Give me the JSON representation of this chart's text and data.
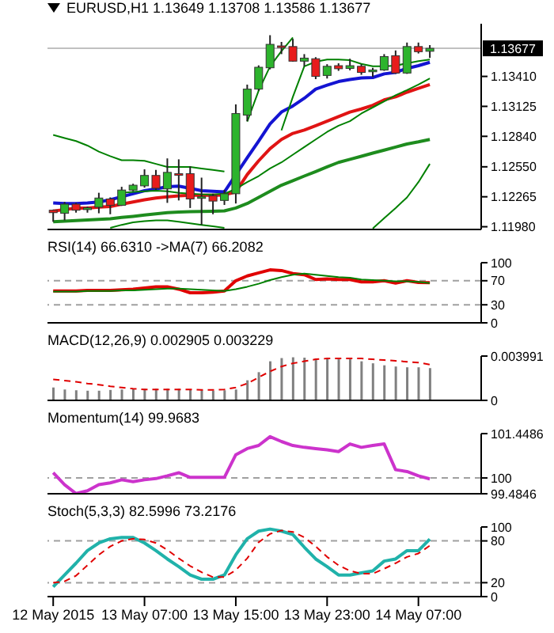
{
  "chart_data": [
    {
      "type": "candlestick",
      "title": "EURUSD,H1 1.13649 1.13708 1.13586 1.13677",
      "x": [
        "2015-05-12T23:00",
        "2015-05-13T00:00",
        "2015-05-13T01:00",
        "2015-05-13T02:00",
        "2015-05-13T03:00",
        "2015-05-13T04:00",
        "2015-05-13T05:00",
        "2015-05-13T06:00",
        "2015-05-13T07:00",
        "2015-05-13T08:00",
        "2015-05-13T09:00",
        "2015-05-13T10:00",
        "2015-05-13T11:00",
        "2015-05-13T12:00",
        "2015-05-13T13:00",
        "2015-05-13T14:00",
        "2015-05-13T15:00",
        "2015-05-13T16:00",
        "2015-05-13T17:00",
        "2015-05-13T18:00",
        "2015-05-13T19:00",
        "2015-05-13T20:00",
        "2015-05-13T21:00",
        "2015-05-13T22:00",
        "2015-05-13T23:00",
        "2015-05-14T00:00",
        "2015-05-14T01:00",
        "2015-05-14T02:00",
        "2015-05-14T03:00",
        "2015-05-14T04:00",
        "2015-05-14T05:00",
        "2015-05-14T06:00",
        "2015-05-14T07:00",
        "2015-05-14T08:00"
      ],
      "ohlc": [
        [
          1.12137,
          1.12143,
          1.12027,
          1.12114
        ],
        [
          1.12108,
          1.12216,
          1.12041,
          1.12195
        ],
        [
          1.12195,
          1.12207,
          1.12114,
          1.12137
        ],
        [
          1.12143,
          1.12172,
          1.12114,
          1.1216
        ],
        [
          1.12166,
          1.12303,
          1.12108,
          1.12253
        ],
        [
          1.12244,
          1.12259,
          1.12099,
          1.12184
        ],
        [
          1.12184,
          1.1236,
          1.12178,
          1.12329
        ],
        [
          1.12329,
          1.12389,
          1.12317,
          1.12375
        ],
        [
          1.12369,
          1.12526,
          1.12352,
          1.12468
        ],
        [
          1.12468,
          1.1252,
          1.12331,
          1.12346
        ],
        [
          1.1234,
          1.1263,
          1.12207,
          1.12497
        ],
        [
          1.12485,
          1.12621,
          1.1223,
          1.12476
        ],
        [
          1.12485,
          1.12555,
          1.12158,
          1.12244
        ],
        [
          1.12259,
          1.12447,
          1.11998,
          1.12265
        ],
        [
          1.12274,
          1.12294,
          1.12099,
          1.12224
        ],
        [
          1.1223,
          1.12331,
          1.12187,
          1.12294
        ],
        [
          1.12294,
          1.13144,
          1.12201,
          1.13057
        ],
        [
          1.13042,
          1.13332,
          1.12984,
          1.13289
        ],
        [
          1.13289,
          1.13515,
          1.13274,
          1.13497
        ],
        [
          1.13492,
          1.13802,
          1.13477,
          1.13715
        ],
        [
          1.137,
          1.13738,
          1.13622,
          1.13694
        ],
        [
          1.13694,
          1.13767,
          1.1355,
          1.13555
        ],
        [
          1.13555,
          1.13622,
          1.13506,
          1.13584
        ],
        [
          1.13578,
          1.13593,
          1.13384,
          1.1341
        ],
        [
          1.13419,
          1.13526,
          1.1339,
          1.13506
        ],
        [
          1.13512,
          1.13535,
          1.13463,
          1.13483
        ],
        [
          1.13486,
          1.13578,
          1.13468,
          1.13512
        ],
        [
          1.13506,
          1.13526,
          1.13425,
          1.13448
        ],
        [
          1.13454,
          1.13492,
          1.13404,
          1.13471
        ],
        [
          1.13471,
          1.13622,
          1.13463,
          1.13599
        ],
        [
          1.13607,
          1.13657,
          1.13434,
          1.13442
        ],
        [
          1.13442,
          1.13732,
          1.13434,
          1.13694
        ],
        [
          1.13694,
          1.13732,
          1.13628,
          1.13645
        ],
        [
          1.13649,
          1.13708,
          1.13586,
          1.13677
        ]
      ],
      "series": [
        {
          "type": "line",
          "color": "#1414d2",
          "values": [
            1.12207,
            1.12201,
            1.12201,
            1.12207,
            1.12216,
            1.12236,
            1.12265,
            1.12294,
            1.12323,
            1.1234,
            1.1236,
            1.12366,
            1.12346,
            1.12323,
            1.12317,
            1.12311,
            1.12474,
            1.12636,
            1.12795,
            1.12958,
            1.13071,
            1.13129,
            1.13202,
            1.13289,
            1.13326,
            1.13361,
            1.13381,
            1.13396,
            1.13399,
            1.13434,
            1.13448,
            1.13486,
            1.13512,
            1.13544
          ]
        },
        {
          "type": "line",
          "color": "#e01414",
          "values": [
            1.12129,
            1.12143,
            1.12158,
            1.12158,
            1.12166,
            1.12172,
            1.12195,
            1.12216,
            1.12236,
            1.12253,
            1.12265,
            1.12274,
            1.12279,
            1.12279,
            1.12279,
            1.12282,
            1.12311,
            1.12476,
            1.12607,
            1.12723,
            1.1281,
            1.12868,
            1.129,
            1.12941,
            1.12984,
            1.13028,
            1.13071,
            1.131,
            1.13135,
            1.13187,
            1.13216,
            1.1326,
            1.13297,
            1.13332
          ]
        },
        {
          "type": "line",
          "color": "#1e8c1e",
          "values": [
            1.12027,
            1.12033,
            1.12039,
            1.12044,
            1.1205,
            1.12056,
            1.12068,
            1.12079,
            1.12091,
            1.12102,
            1.12114,
            1.1212,
            1.12123,
            1.12126,
            1.12128,
            1.12131,
            1.12158,
            1.12201,
            1.12259,
            1.12317,
            1.12375,
            1.12418,
            1.12462,
            1.12505,
            1.12549,
            1.12592,
            1.12621,
            1.1265,
            1.1268,
            1.12709,
            1.12738,
            1.12767,
            1.12787,
            1.1281
          ]
        },
        {
          "type": "line",
          "color": "#008000",
          "values": [
            1.12853,
            1.12824,
            1.12795,
            1.12752,
            1.12694,
            1.12651,
            1.12613,
            1.12613,
            1.12607,
            1.12578,
            1.12549,
            1.12549,
            1.12549,
            1.12534,
            1.1252,
            1.12505,
            null,
            1.1298,
            1.13274,
            1.13506,
            1.13651,
            1.13781,
            null,
            null,
            null,
            null,
            null,
            null,
            null,
            null,
            null,
            null,
            null,
            null
          ]
        },
        {
          "type": "line",
          "color": "#008000",
          "values": [
            null,
            null,
            null,
            null,
            null,
            null,
            null,
            null,
            null,
            null,
            null,
            null,
            null,
            null,
            null,
            null,
            null,
            null,
            null,
            null,
            1.12897,
            1.13216,
            1.13506,
            1.1355,
            1.1357,
            1.1357,
            1.13564,
            1.13529,
            1.13506,
            1.13506,
            1.13512,
            1.13535,
            1.13555,
            1.1357
          ]
        },
        {
          "type": "line",
          "color": "#008000",
          "values": [
            null,
            null,
            null,
            null,
            null,
            null,
            1.12303,
            1.12311,
            1.12317,
            1.12323,
            1.12317,
            1.12303,
            1.12294,
            1.12288,
            1.12288,
            1.12294,
            1.1234,
            1.12404,
            1.12462,
            1.12534,
            1.12592,
            1.12665,
            1.12738,
            1.1281,
            1.12882,
            1.12941,
            1.12984,
            1.13057,
            1.13115,
            1.13173,
            1.13231,
            1.1328,
            1.13332,
            1.1339
          ]
        },
        {
          "type": "line",
          "color": "#008000",
          "values": [
            null,
            null,
            null,
            null,
            null,
            1.11969,
            1.11998,
            1.12021,
            1.12033,
            1.12041,
            1.12041,
            1.12027,
            1.12012,
            1.11998,
            1.11984,
            1.11969,
            null,
            null,
            null,
            null,
            null,
            null,
            null,
            null,
            null,
            null,
            null,
            null,
            1.11963,
            1.12062,
            1.12158,
            1.12259,
            1.12404,
            1.12578
          ]
        }
      ],
      "xlim": [
        "2015-05-12T22:30",
        "2015-05-14T12:30"
      ],
      "ylim": [
        1.11954,
        1.13911
      ],
      "yticks": [
        {
          "value": 1.1198,
          "label": "1.11980"
        },
        1.12265,
        {
          "value": 1.1255,
          "label": "1.12550"
        },
        {
          "value": 1.1284,
          "label": "1.12840"
        },
        1.13125,
        {
          "value": 1.1341,
          "label": "1.13410"
        }
      ],
      "ref_lines": [
        {
          "axis": "y",
          "value": 1.13677,
          "label": "1.13677",
          "color": "#c0c0c0"
        }
      ],
      "tick_labels": "y"
    },
    {
      "type": "line",
      "title": "RSI(14) 66.6310 ->MA(7) 66.2082",
      "x": [
        "2015-05-12T23:00",
        "2015-05-13T00:00",
        "2015-05-13T01:00",
        "2015-05-13T02:00",
        "2015-05-13T03:00",
        "2015-05-13T04:00",
        "2015-05-13T05:00",
        "2015-05-13T06:00",
        "2015-05-13T07:00",
        "2015-05-13T08:00",
        "2015-05-13T09:00",
        "2015-05-13T10:00",
        "2015-05-13T11:00",
        "2015-05-13T12:00",
        "2015-05-13T13:00",
        "2015-05-13T14:00",
        "2015-05-13T15:00",
        "2015-05-13T16:00",
        "2015-05-13T17:00",
        "2015-05-13T18:00",
        "2015-05-13T19:00",
        "2015-05-13T20:00",
        "2015-05-13T21:00",
        "2015-05-13T22:00",
        "2015-05-13T23:00",
        "2015-05-14T00:00",
        "2015-05-14T01:00",
        "2015-05-14T02:00",
        "2015-05-14T03:00",
        "2015-05-14T04:00",
        "2015-05-14T05:00",
        "2015-05-14T06:00",
        "2015-05-14T07:00",
        "2015-05-14T08:00"
      ],
      "series": [
        {
          "color": "#e00000",
          "values": [
            53,
            53,
            53,
            54,
            54,
            54,
            55,
            56,
            58,
            60,
            60,
            56,
            50,
            50,
            51,
            53,
            70,
            78,
            83,
            88,
            87,
            82,
            80,
            72,
            73,
            72,
            72,
            68,
            68,
            70,
            66,
            70,
            67,
            66.631
          ]
        },
        {
          "color": "#008000",
          "values": [
            52,
            52,
            52,
            53,
            53,
            53,
            54,
            54,
            55,
            56,
            57,
            57,
            56,
            55,
            54,
            53,
            56,
            60,
            65,
            71,
            76,
            80,
            82,
            80,
            78,
            76,
            75,
            72,
            71,
            70,
            69,
            69,
            68,
            66.2082
          ]
        }
      ],
      "xlim": [
        "2015-05-12T22:30",
        "2015-05-14T12:30"
      ],
      "ylim": [
        0,
        100
      ],
      "yticks": [
        0,
        30,
        70,
        100
      ],
      "ref_lines": [
        {
          "axis": "y",
          "value": 70,
          "color": "#a0a0a0",
          "line_style": "dashed"
        },
        {
          "axis": "y",
          "value": 30,
          "color": "#a0a0a0",
          "line_style": "dashed"
        }
      ],
      "tick_labels": "y"
    },
    {
      "type": "bar",
      "title": "MACD(12,26,9) 0.002905 0.003229",
      "x": [
        "2015-05-12T23:00",
        "2015-05-13T00:00",
        "2015-05-13T01:00",
        "2015-05-13T02:00",
        "2015-05-13T03:00",
        "2015-05-13T04:00",
        "2015-05-13T05:00",
        "2015-05-13T06:00",
        "2015-05-13T07:00",
        "2015-05-13T08:00",
        "2015-05-13T09:00",
        "2015-05-13T10:00",
        "2015-05-13T11:00",
        "2015-05-13T12:00",
        "2015-05-13T13:00",
        "2015-05-13T14:00",
        "2015-05-13T15:00",
        "2015-05-13T16:00",
        "2015-05-13T17:00",
        "2015-05-13T18:00",
        "2015-05-13T19:00",
        "2015-05-13T20:00",
        "2015-05-13T21:00",
        "2015-05-13T22:00",
        "2015-05-13T23:00",
        "2015-05-14T00:00",
        "2015-05-14T01:00",
        "2015-05-14T02:00",
        "2015-05-14T03:00",
        "2015-05-14T04:00",
        "2015-05-14T05:00",
        "2015-05-14T06:00",
        "2015-05-14T07:00",
        "2015-05-14T08:00"
      ],
      "series": [
        {
          "type": "bar",
          "color": "#808080",
          "values": [
            0.00116,
            0.00098,
            0.00091,
            0.00087,
            0.00087,
            0.00094,
            0.00098,
            0.00105,
            0.00105,
            0.00105,
            0.00105,
            0.00105,
            0.00098,
            0.00091,
            0.00087,
            0.00091,
            0.00098,
            0.00181,
            0.00254,
            0.00352,
            0.00381,
            0.00388,
            0.00385,
            0.00377,
            0.00377,
            0.0037,
            0.0037,
            0.00352,
            0.00334,
            0.00316,
            0.00305,
            0.00298,
            0.00298,
            0.002905
          ]
        },
        {
          "type": "line",
          "color": "#e00000",
          "line_style": "dashed",
          "values": [
            0.00189,
            0.00178,
            0.00167,
            0.00152,
            0.00141,
            0.00127,
            0.00116,
            0.00105,
            0.00098,
            0.00098,
            0.00098,
            0.00098,
            0.00098,
            0.00094,
            0.00094,
            0.00098,
            0.00116,
            0.00152,
            0.00207,
            0.00261,
            0.00305,
            0.00334,
            0.00352,
            0.0037,
            0.00377,
            0.00377,
            0.00377,
            0.00377,
            0.0037,
            0.00363,
            0.00356,
            0.00348,
            0.00341,
            0.003229
          ]
        }
      ],
      "xlim": [
        "2015-05-12T22:30",
        "2015-05-14T12:30"
      ],
      "ylim": [
        0,
        0.003991
      ],
      "yticks": [
        0,
        0.003991
      ],
      "tick_labels": "y"
    },
    {
      "type": "line",
      "title": "Momentum(14) 99.9683",
      "x": [
        "2015-05-12T23:00",
        "2015-05-13T00:00",
        "2015-05-13T01:00",
        "2015-05-13T02:00",
        "2015-05-13T03:00",
        "2015-05-13T04:00",
        "2015-05-13T05:00",
        "2015-05-13T06:00",
        "2015-05-13T07:00",
        "2015-05-13T08:00",
        "2015-05-13T09:00",
        "2015-05-13T10:00",
        "2015-05-13T11:00",
        "2015-05-13T12:00",
        "2015-05-13T13:00",
        "2015-05-13T14:00",
        "2015-05-13T15:00",
        "2015-05-13T16:00",
        "2015-05-13T17:00",
        "2015-05-13T18:00",
        "2015-05-13T19:00",
        "2015-05-13T20:00",
        "2015-05-13T21:00",
        "2015-05-13T22:00",
        "2015-05-13T23:00",
        "2015-05-14T00:00",
        "2015-05-14T01:00",
        "2015-05-14T02:00",
        "2015-05-14T03:00",
        "2015-05-14T04:00",
        "2015-05-14T05:00",
        "2015-05-14T06:00",
        "2015-05-14T07:00",
        "2015-05-14T08:00"
      ],
      "series": [
        {
          "color": "#cc33cc",
          "values": [
            100.17,
            99.78,
            99.49,
            99.58,
            99.78,
            99.84,
            99.94,
            99.88,
            99.94,
            99.98,
            100.07,
            100.17,
            100.02,
            100.02,
            100.02,
            100.02,
            100.76,
            100.96,
            101.06,
            101.35,
            101.19,
            101.06,
            101,
            100.96,
            100.92,
            100.86,
            101.11,
            101,
            101.06,
            101.11,
            100.27,
            100.21,
            100.07,
            99.9683
          ]
        }
      ],
      "xlim": [
        "2015-05-12T22:30",
        "2015-05-14T12:30"
      ],
      "ylim": [
        99.4846,
        101.4486
      ],
      "yticks": [
        99.4846,
        100,
        101.4486
      ],
      "ref_lines": [
        {
          "axis": "y",
          "value": 100,
          "color": "#a0a0a0",
          "line_style": "dashed"
        }
      ],
      "tick_labels": "y"
    },
    {
      "type": "line",
      "title": "Stoch(5,3,3) 82.5996 73.2176",
      "x": [
        "2015-05-12T23:00",
        "2015-05-13T00:00",
        "2015-05-13T01:00",
        "2015-05-13T02:00",
        "2015-05-13T03:00",
        "2015-05-13T04:00",
        "2015-05-13T05:00",
        "2015-05-13T06:00",
        "2015-05-13T07:00",
        "2015-05-13T08:00",
        "2015-05-13T09:00",
        "2015-05-13T10:00",
        "2015-05-13T11:00",
        "2015-05-13T12:00",
        "2015-05-13T13:00",
        "2015-05-13T14:00",
        "2015-05-13T15:00",
        "2015-05-13T16:00",
        "2015-05-13T17:00",
        "2015-05-13T18:00",
        "2015-05-13T19:00",
        "2015-05-13T20:00",
        "2015-05-13T21:00",
        "2015-05-13T22:00",
        "2015-05-13T23:00",
        "2015-05-14T00:00",
        "2015-05-14T01:00",
        "2015-05-14T02:00",
        "2015-05-14T03:00",
        "2015-05-14T04:00",
        "2015-05-14T05:00",
        "2015-05-14T06:00",
        "2015-05-14T07:00",
        "2015-05-14T08:00"
      ],
      "series": [
        {
          "color": "#20b2aa",
          "values": [
            14,
            31,
            48,
            66,
            77,
            83,
            85,
            85,
            77,
            66,
            54,
            43,
            31,
            25,
            25,
            31,
            60,
            83,
            94,
            97,
            94,
            89,
            71,
            54,
            43,
            31,
            31,
            34,
            37,
            51,
            54,
            66,
            66,
            82.5996
          ]
        },
        {
          "color": "#e00000",
          "line_style": "dashed",
          "values": [
            20,
            22,
            30,
            45,
            60,
            72,
            80,
            83,
            82,
            77,
            67,
            55,
            44,
            35,
            28,
            28,
            38,
            55,
            78,
            90,
            95,
            93,
            85,
            72,
            57,
            45,
            37,
            33,
            33,
            40,
            48,
            57,
            62,
            73.2176
          ]
        }
      ],
      "xlim": [
        "2015-05-12T22:30",
        "2015-05-14T12:30"
      ],
      "xticks": [
        {
          "value": "2015-05-12T23:00",
          "label": "12 May 2015"
        },
        {
          "value": "2015-05-13T07:00",
          "label": "13 May 07:00"
        },
        {
          "value": "2015-05-13T15:00",
          "label": "13 May 15:00"
        },
        {
          "value": "2015-05-13T23:00",
          "label": "13 May 23:00"
        },
        {
          "value": "2015-05-14T07:00",
          "label": "14 May 07:00"
        }
      ],
      "ylim": [
        0,
        100
      ],
      "yticks": [
        0,
        20,
        80,
        100
      ],
      "ref_lines": [
        {
          "axis": "y",
          "value": 80,
          "color": "#a0a0a0",
          "line_style": "dashed"
        },
        {
          "axis": "y",
          "value": 20,
          "color": "#a0a0a0",
          "line_style": "dashed"
        }
      ]
    }
  ]
}
